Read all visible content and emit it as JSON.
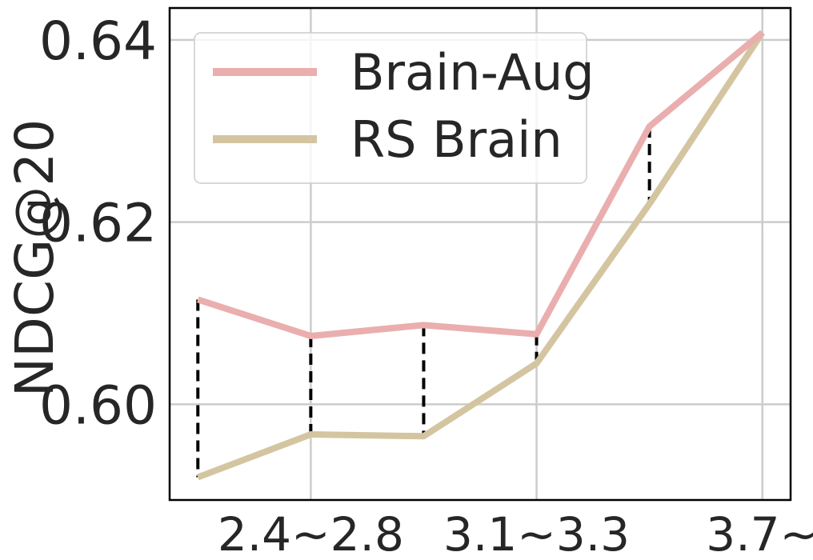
{
  "chart_data": {
    "type": "line",
    "title": "",
    "xlabel": "",
    "ylabel": "NDCG@20",
    "ylim": [
      0.5895,
      0.6435
    ],
    "yticks": [
      0.6,
      0.62,
      0.64
    ],
    "ytick_labels": [
      "0.60",
      "0.62",
      "0.64"
    ],
    "x_positions": [
      0,
      1,
      2,
      3,
      4,
      5
    ],
    "xlim": [
      -0.25,
      5.25
    ],
    "xticks": [
      1,
      3,
      5
    ],
    "xtick_labels": [
      "2.4~2.8",
      "3.1~3.3",
      "3.7~"
    ],
    "grid": true,
    "legend_position": "upper-left",
    "series": [
      {
        "name": "Brain-Aug",
        "color": "#eaaeae",
        "values": [
          0.6115,
          0.6075,
          0.6087,
          0.6077,
          0.6305,
          0.6408
        ]
      },
      {
        "name": "RS Brain",
        "color": "#d4c5a1",
        "values": [
          0.592,
          0.5967,
          0.5965,
          0.6045,
          0.622,
          0.6408
        ]
      }
    ],
    "gap_lines": {
      "style": "dashed",
      "color": "#000000",
      "indices": [
        0,
        1,
        2,
        3,
        4
      ]
    }
  }
}
